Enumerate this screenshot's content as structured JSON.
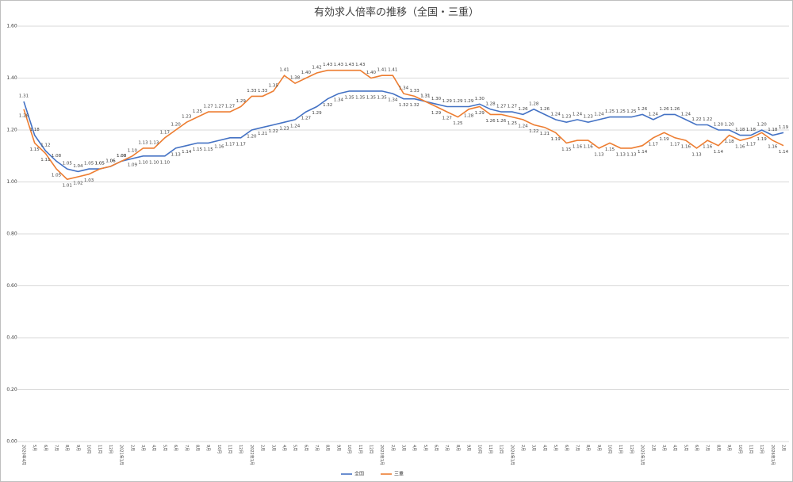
{
  "chart_data": {
    "type": "line",
    "title": "有効求人倍率の推移（全国・三重）",
    "categories": [
      "2020年4月",
      "5月",
      "6月",
      "7月",
      "8月",
      "9月",
      "10月",
      "11月",
      "12月",
      "2021年1月",
      "2月",
      "3月",
      "4月",
      "5月",
      "6月",
      "7月",
      "8月",
      "9月",
      "10月",
      "11月",
      "12月",
      "2022年1月",
      "2月",
      "3月",
      "4月",
      "5月",
      "6月",
      "7月",
      "8月",
      "9月",
      "10月",
      "11月",
      "12月",
      "2023年1月",
      "2月",
      "3月",
      "4月",
      "5月",
      "6月",
      "7月",
      "8月",
      "9月",
      "10月",
      "11月",
      "12月",
      "2024年1月",
      "2月",
      "3月",
      "4月",
      "5月",
      "6月",
      "7月",
      "8月",
      "9月",
      "10月",
      "11月",
      "12月",
      "2025年1月",
      "2月",
      "3月",
      "4月",
      "5月",
      "6月",
      "7月",
      "8月",
      "9月",
      "10月",
      "11月",
      "12月",
      "2026年1月",
      "2月"
    ],
    "series": [
      {
        "name": "全国",
        "color": "#4472c4",
        "values": [
          1.31,
          1.18,
          1.12,
          1.08,
          1.05,
          1.04,
          1.05,
          1.05,
          1.06,
          1.08,
          1.09,
          1.1,
          1.1,
          1.1,
          1.13,
          1.14,
          1.15,
          1.15,
          1.16,
          1.17,
          1.17,
          1.2,
          1.21,
          1.22,
          1.23,
          1.24,
          1.27,
          1.29,
          1.32,
          1.34,
          1.35,
          1.35,
          1.35,
          1.35,
          1.34,
          1.32,
          1.32,
          1.31,
          1.3,
          1.29,
          1.29,
          1.29,
          1.3,
          1.28,
          1.27,
          1.27,
          1.26,
          1.28,
          1.26,
          1.24,
          1.23,
          1.24,
          1.23,
          1.24,
          1.25,
          1.25,
          1.25,
          1.26,
          1.24,
          1.26,
          1.26,
          1.24,
          1.22,
          1.22,
          1.2,
          1.2,
          1.18,
          1.18,
          1.2,
          1.18,
          1.19
        ],
        "value_labels": [
          "1.31",
          "1.18",
          "1.12",
          "1.08",
          "1.05",
          "1.04",
          "1.05",
          "1.05",
          "1.06",
          "1.08",
          "1.09",
          "1.10",
          "1.10",
          "1.10",
          "1.13",
          "1.14",
          "1.15",
          "1.15",
          "1.16",
          "1.17",
          "1.17",
          "1.20",
          "1.21",
          "1.22",
          "1.23",
          "1.24",
          "1.27",
          "1.29",
          "1.32",
          "1.34",
          "1.35",
          "1.35",
          "1.35",
          "1.35",
          "1.34",
          "1.32",
          "1.32",
          "1.31",
          "1.30",
          "1.29",
          "1.29",
          "1.29",
          "1.30",
          "1.28",
          "1.27",
          "1.27",
          "1.26",
          "1.28",
          "1.26",
          "1.24",
          "1.23",
          "1.24",
          "1.23",
          "1.24",
          "1.25",
          "1.25",
          "1.25",
          "1.26",
          "1.24",
          "1.26",
          "1.26",
          "1.24",
          "1.22",
          "1.22",
          "1.20",
          "1.20",
          "1.18",
          "1.18",
          "1.20",
          "1.18",
          "1.19"
        ]
      },
      {
        "name": "三重",
        "color": "#ed7d31",
        "values": [
          1.28,
          1.15,
          1.11,
          1.05,
          1.01,
          1.02,
          1.03,
          1.05,
          1.06,
          1.08,
          1.1,
          1.13,
          1.13,
          1.17,
          1.2,
          1.23,
          1.25,
          1.27,
          1.27,
          1.27,
          1.29,
          1.33,
          1.33,
          1.35,
          1.41,
          1.38,
          1.4,
          1.42,
          1.43,
          1.43,
          1.43,
          1.43,
          1.4,
          1.41,
          1.41,
          1.34,
          1.33,
          1.31,
          1.29,
          1.27,
          1.25,
          1.28,
          1.29,
          1.26,
          1.26,
          1.25,
          1.24,
          1.22,
          1.21,
          1.19,
          1.15,
          1.16,
          1.16,
          1.13,
          1.15,
          1.13,
          1.13,
          1.14,
          1.17,
          1.19,
          1.17,
          1.16,
          1.13,
          1.16,
          1.14,
          1.18,
          1.16,
          1.17,
          1.19,
          1.16,
          1.14
        ],
        "value_labels": [
          "1.28",
          "1.15",
          "1.11",
          "1.05",
          "1.01",
          "1.02",
          "1.03",
          "1.05",
          "1.06",
          "1.08",
          "1.10",
          "1.13",
          "1.13",
          "1.17",
          "1.20",
          "1.23",
          "1.25",
          "1.27",
          "1.27",
          "1.27",
          "1.29",
          "1.33",
          "1.33",
          "1.35",
          "1.41",
          "1.38",
          "1.40",
          "1.42",
          "1.43",
          "1.43",
          "1.43",
          "1.43",
          "1.40",
          "1.41",
          "1.41",
          "1.34",
          "1.33",
          "1.31",
          "1.29",
          "1.27",
          "1.25",
          "1.28",
          "1.29",
          "1.26",
          "1.26",
          "1.25",
          "1.24",
          "1.22",
          "1.21",
          "1.19",
          "1.15",
          "1.16",
          "1.16",
          "1.13",
          "1.15",
          "1.13",
          "1.13",
          "1.14",
          "1.17",
          "1.19",
          "1.17",
          "1.16",
          "1.13",
          "1.16",
          "1.14",
          "1.18",
          "1.16",
          "1.17",
          "1.19",
          "1.16",
          "1.14"
        ]
      }
    ],
    "ylim": [
      0,
      1.6
    ],
    "yticks": [
      {
        "value": 0,
        "label": "0.00"
      },
      {
        "value": 0.2,
        "label": "0.20"
      },
      {
        "value": 0.4,
        "label": "0.40"
      },
      {
        "value": 0.6,
        "label": "0.60"
      },
      {
        "value": 0.8,
        "label": "0.80"
      },
      {
        "value": 1,
        "label": "1.00"
      },
      {
        "value": 1.2,
        "label": "1.20"
      },
      {
        "value": 1.4,
        "label": "1.40"
      },
      {
        "value": 1.6,
        "label": "1.60"
      }
    ],
    "grid": true,
    "legend": "bottom"
  }
}
